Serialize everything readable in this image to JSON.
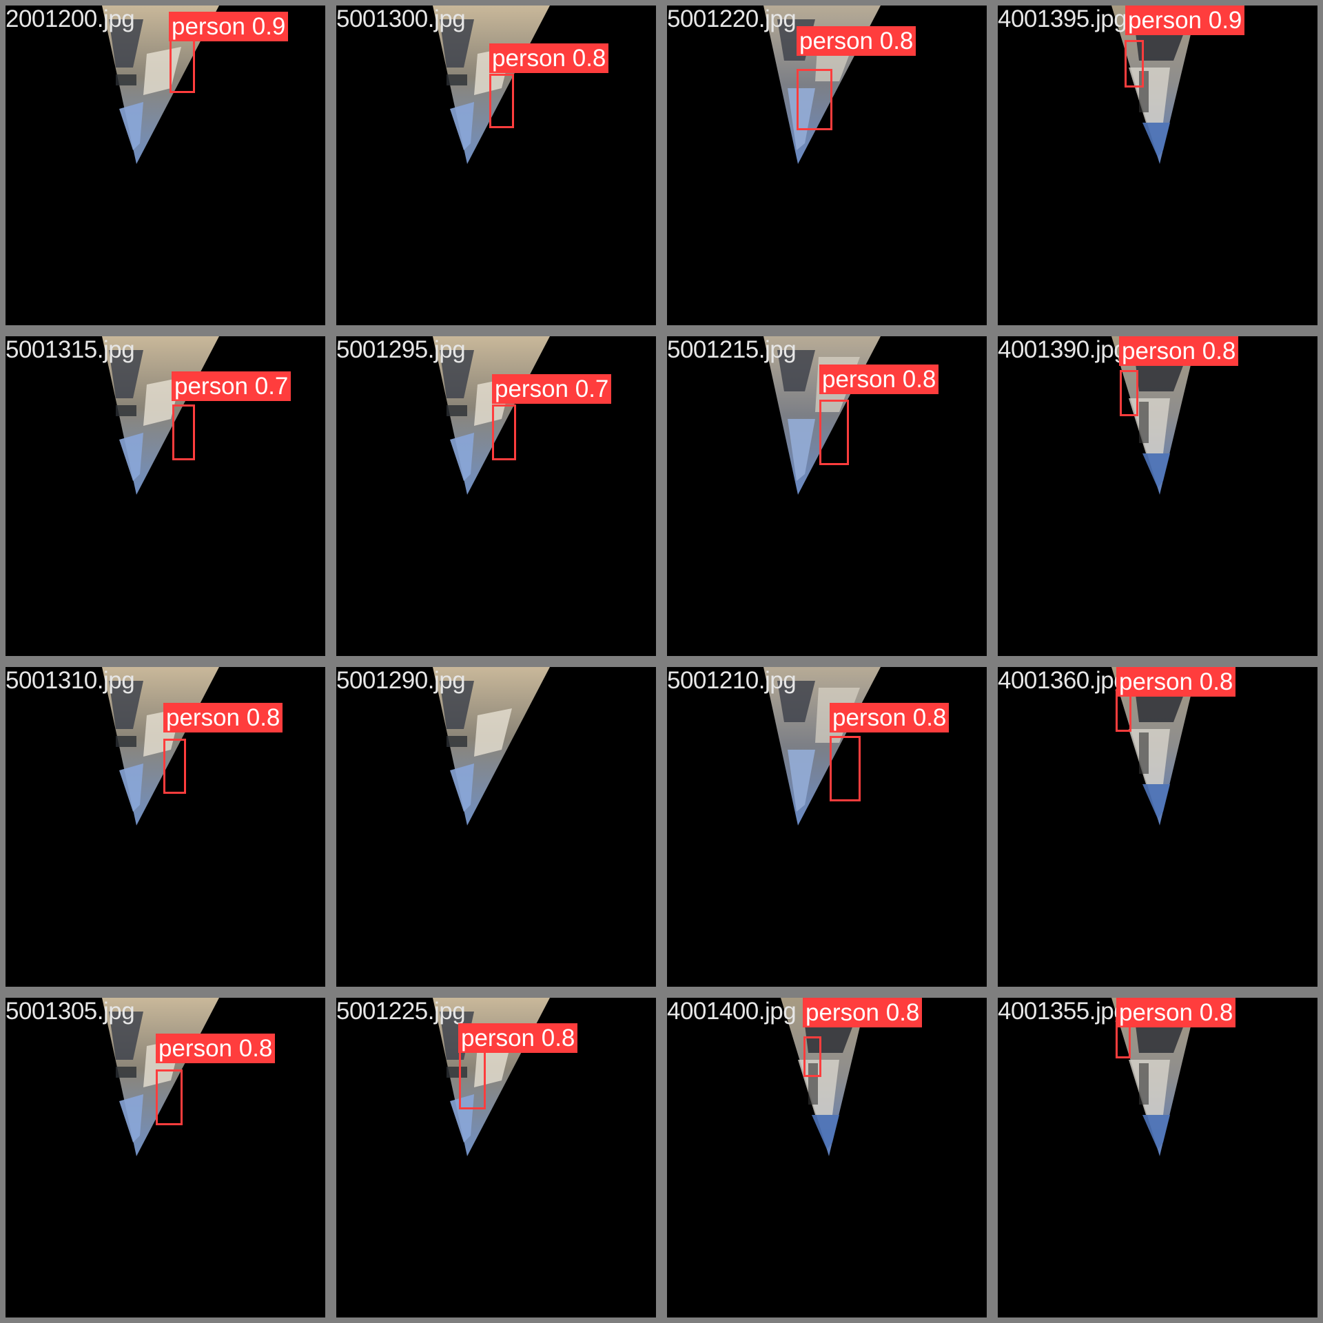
{
  "colors": {
    "border_gray": "#7f7f7f",
    "label_red": "#ff3d3d",
    "filename_text": "#e6e6e6"
  },
  "tiles": [
    {
      "filename": "2001200.jpg",
      "variant": "a",
      "detection": {
        "label": "person 0.9"
      }
    },
    {
      "filename": "5001300.jpg",
      "variant": "a",
      "detection": {
        "label": "person 0.8"
      }
    },
    {
      "filename": "5001220.jpg",
      "variant": "b",
      "detection": {
        "label": "person 0.8"
      }
    },
    {
      "filename": "4001395.jpg",
      "variant": "c",
      "detection": {
        "label": "person 0.9"
      }
    },
    {
      "filename": "5001315.jpg",
      "variant": "a",
      "detection": {
        "label": "person 0.7"
      }
    },
    {
      "filename": "5001295.jpg",
      "variant": "a",
      "detection": {
        "label": "person 0.7"
      }
    },
    {
      "filename": "5001215.jpg",
      "variant": "b",
      "detection": {
        "label": "person 0.8"
      }
    },
    {
      "filename": "4001390.jpg",
      "variant": "c",
      "detection": {
        "label": "person 0.8"
      }
    },
    {
      "filename": "5001310.jpg",
      "variant": "a",
      "detection": {
        "label": "person 0.8"
      }
    },
    {
      "filename": "5001290.jpg",
      "variant": "a",
      "detection": null
    },
    {
      "filename": "5001210.jpg",
      "variant": "b",
      "detection": {
        "label": "person 0.8"
      }
    },
    {
      "filename": "4001360.jpg",
      "variant": "c",
      "detection": {
        "label": "person 0.8"
      }
    },
    {
      "filename": "5001305.jpg",
      "variant": "a",
      "detection": {
        "label": "person 0.8"
      }
    },
    {
      "filename": "5001225.jpg",
      "variant": "a",
      "detection": {
        "label": "person 0.8"
      }
    },
    {
      "filename": "4001400.jpg",
      "variant": "c",
      "detection": {
        "label": "person 0.8"
      }
    },
    {
      "filename": "4001355.jpg",
      "variant": "c",
      "detection": {
        "label": "person 0.8"
      }
    }
  ]
}
